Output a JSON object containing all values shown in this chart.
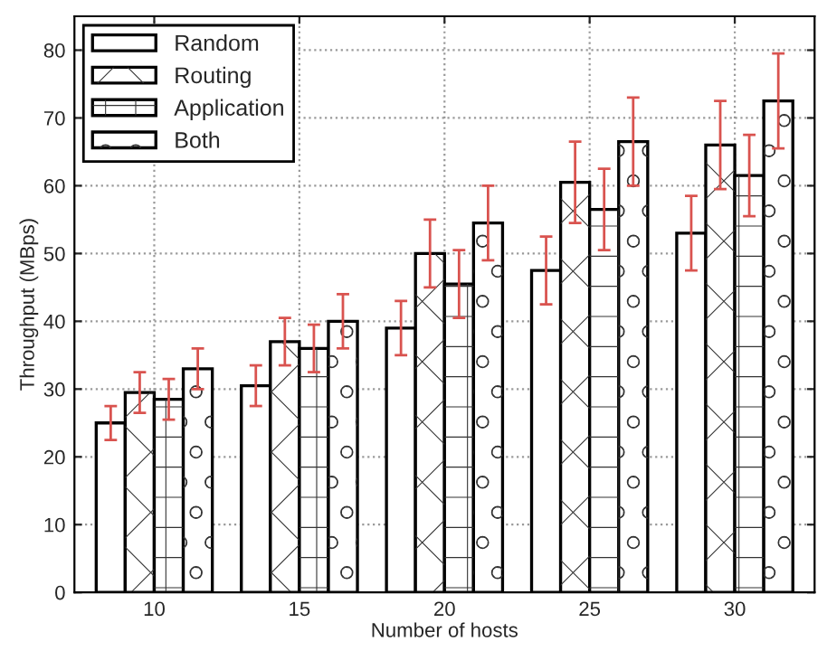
{
  "chart_data": {
    "type": "bar",
    "xlabel": "Number of hosts",
    "ylabel": "Throughput (MBps)",
    "categories": [
      "10",
      "15",
      "20",
      "25",
      "30"
    ],
    "series": [
      {
        "name": "Random",
        "color": "#ffffff",
        "values": [
          25,
          30.5,
          39,
          47.5,
          53
        ],
        "errors": [
          2.5,
          3,
          4,
          5,
          5.5
        ]
      },
      {
        "name": "Routing",
        "color": "#ffffff",
        "values": [
          29.5,
          37,
          50,
          60.5,
          66
        ],
        "errors": [
          3,
          3.5,
          5,
          6,
          6.5
        ]
      },
      {
        "name": "Application",
        "color": "#ffffff",
        "values": [
          28.5,
          36,
          45.5,
          56.5,
          61.5
        ],
        "errors": [
          3,
          3.5,
          5,
          6,
          6
        ]
      },
      {
        "name": "Both",
        "color": "#ffffff",
        "values": [
          33,
          40,
          54.5,
          66.5,
          72.5
        ],
        "errors": [
          3,
          4,
          5.5,
          6.5,
          7
        ]
      }
    ],
    "ylim": [
      0,
      85
    ],
    "yticks": [
      0,
      10,
      20,
      30,
      40,
      50,
      60,
      70,
      80
    ],
    "grid": true,
    "legend": "top left"
  }
}
